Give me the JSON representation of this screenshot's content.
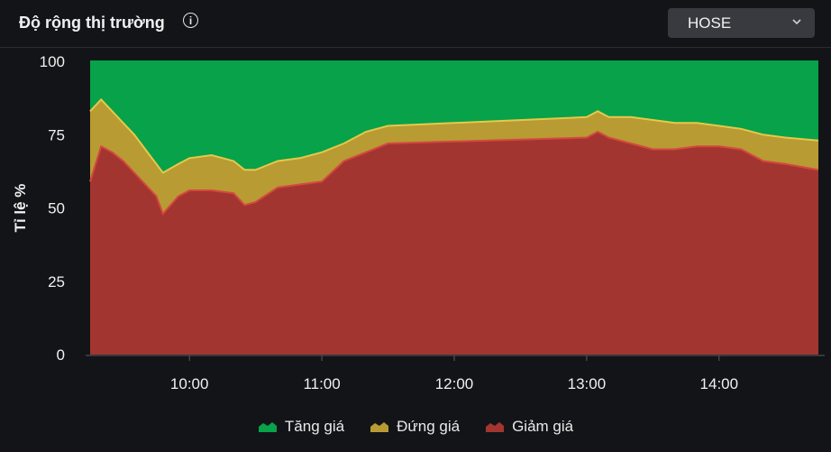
{
  "header": {
    "title": "Độ rộng thị trường",
    "info_icon": "info-icon",
    "exchange_select": {
      "value": "HOSE",
      "icon": "chevron-down-icon"
    }
  },
  "chart_data": {
    "type": "area",
    "stacked": true,
    "ylabel": "Tỉ lệ %",
    "ylim": [
      0,
      100
    ],
    "yticks": [
      "0",
      "25",
      "50",
      "75",
      "100"
    ],
    "xticks": [
      "10:00",
      "11:00",
      "12:00",
      "13:00",
      "14:00"
    ],
    "xlim": [
      "09:15",
      "14:45"
    ],
    "grid": false,
    "legend_position": "bottom",
    "x": [
      "09:15",
      "09:20",
      "09:25",
      "09:30",
      "09:35",
      "09:40",
      "09:45",
      "09:48",
      "09:55",
      "10:00",
      "10:10",
      "10:20",
      "10:25",
      "10:30",
      "10:40",
      "10:50",
      "11:00",
      "11:10",
      "11:20",
      "11:30",
      "13:00",
      "13:05",
      "13:10",
      "13:20",
      "13:30",
      "13:40",
      "13:50",
      "14:00",
      "14:10",
      "14:20",
      "14:30",
      "14:45"
    ],
    "series": [
      {
        "name": "Giảm giá",
        "color": "#a33531",
        "values": [
          59,
          71,
          69,
          66,
          62,
          58,
          54,
          48,
          54,
          56,
          56,
          55,
          51,
          52,
          57,
          58,
          59,
          66,
          69,
          72,
          74,
          76,
          74,
          72,
          70,
          70,
          71,
          71,
          70,
          66,
          65,
          63
        ]
      },
      {
        "name": "Đứng giá",
        "color": "#b89b32",
        "values": [
          24,
          16,
          14,
          13,
          13,
          12,
          11,
          14,
          11,
          11,
          12,
          11,
          12,
          11,
          9,
          9,
          10,
          6,
          7,
          6,
          7,
          7,
          7,
          9,
          10,
          9,
          8,
          7,
          7,
          9,
          9,
          10
        ]
      },
      {
        "name": "Tăng giá",
        "color": "#07a24a",
        "values": [
          17,
          13,
          17,
          21,
          25,
          30,
          35,
          38,
          35,
          33,
          32,
          34,
          37,
          37,
          34,
          33,
          31,
          28,
          24,
          22,
          19,
          17,
          19,
          19,
          20,
          21,
          21,
          22,
          23,
          25,
          26,
          27
        ]
      }
    ],
    "legend": [
      "Tăng giá",
      "Đứng giá",
      "Giảm giá"
    ]
  }
}
